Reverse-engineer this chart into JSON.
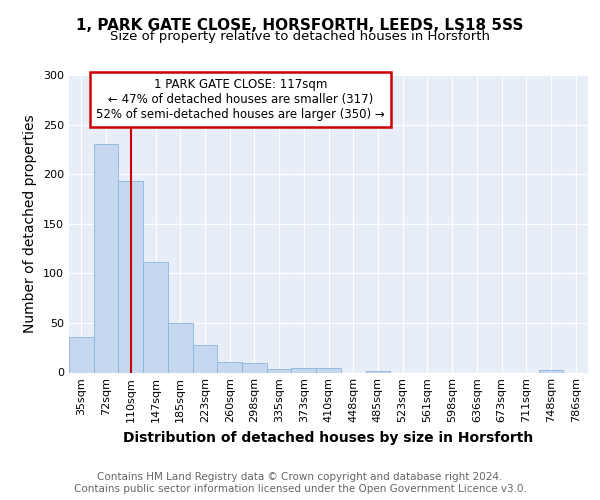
{
  "title_line1": "1, PARK GATE CLOSE, HORSFORTH, LEEDS, LS18 5SS",
  "title_line2": "Size of property relative to detached houses in Horsforth",
  "xlabel": "Distribution of detached houses by size in Horsforth",
  "ylabel": "Number of detached properties",
  "categories": [
    "35sqm",
    "72sqm",
    "110sqm",
    "147sqm",
    "185sqm",
    "223sqm",
    "260sqm",
    "298sqm",
    "335sqm",
    "373sqm",
    "410sqm",
    "448sqm",
    "485sqm",
    "523sqm",
    "561sqm",
    "598sqm",
    "636sqm",
    "673sqm",
    "711sqm",
    "748sqm",
    "786sqm"
  ],
  "values": [
    36,
    230,
    193,
    111,
    50,
    28,
    11,
    10,
    4,
    5,
    5,
    0,
    2,
    0,
    0,
    0,
    0,
    0,
    0,
    3,
    0
  ],
  "bar_color": "#c5d8f0",
  "bar_edge_color": "#8ab4d8",
  "annotation_box_text": "1 PARK GATE CLOSE: 117sqm\n← 47% of detached houses are smaller (317)\n52% of semi-detached houses are larger (350) →",
  "annotation_box_color": "#ffffff",
  "annotation_box_edge_color": "#cc0000",
  "vline_x_index": 2.0,
  "vline_color": "#cc0000",
  "ylim": [
    0,
    300
  ],
  "yticks": [
    0,
    50,
    100,
    150,
    200,
    250,
    300
  ],
  "footer_text": "Contains HM Land Registry data © Crown copyright and database right 2024.\nContains public sector information licensed under the Open Government Licence v3.0.",
  "background_color": "#ffffff",
  "plot_background_color": "#e8eef8",
  "title_fontsize": 11,
  "subtitle_fontsize": 9.5,
  "axis_label_fontsize": 10,
  "tick_fontsize": 8,
  "footer_fontsize": 7.5
}
